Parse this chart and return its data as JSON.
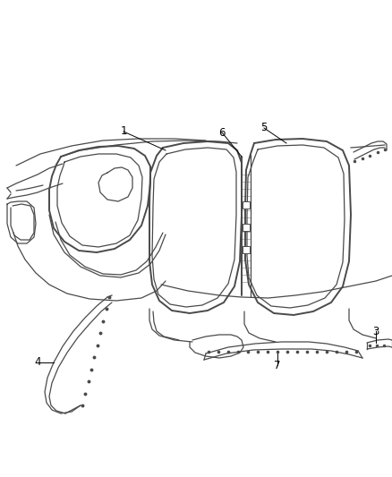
{
  "background_color": "#ffffff",
  "line_color": "#4a4a4a",
  "label_color": "#000000",
  "label_fontsize": 8.5,
  "figsize": [
    4.38,
    5.33
  ],
  "dpi": 100
}
